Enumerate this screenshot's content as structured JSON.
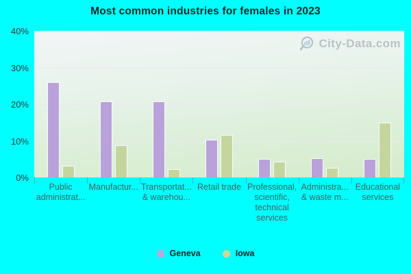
{
  "title": "Most common industries for females in 2023",
  "watermark": {
    "text": "City-Data.com",
    "icon": "magnifier-barchart-icon"
  },
  "y_axis": {
    "ticks": [
      "40%",
      "30%",
      "20%",
      "10%",
      "0%"
    ]
  },
  "chart_data": {
    "type": "bar",
    "title": "Most common industries for females in 2023",
    "categories": [
      "Public administrat...",
      "Manufactur...",
      "Transportat... & warehou...",
      "Retail trade",
      "Professional, scientific, technical services",
      "Administra... & waste m...",
      "Educational services"
    ],
    "category_lines": [
      [
        "Public",
        "administrat..."
      ],
      [
        "Manufactur..."
      ],
      [
        "Transportat...",
        "& warehou..."
      ],
      [
        "Retail trade"
      ],
      [
        "Professional,",
        "scientific,",
        "technical",
        "services"
      ],
      [
        "Administra...",
        "& waste m..."
      ],
      [
        "Educational",
        "services"
      ]
    ],
    "series": [
      {
        "name": "Geneva",
        "color": "#b8a2d9",
        "values": [
          26.0,
          20.7,
          20.7,
          10.3,
          5.0,
          5.2,
          5.1
        ]
      },
      {
        "name": "Iowa",
        "color": "#c4d69e",
        "values": [
          3.2,
          8.8,
          2.2,
          11.6,
          4.3,
          2.6,
          14.9
        ]
      }
    ],
    "ylim": [
      0,
      40
    ],
    "xlabel": "",
    "ylabel": "",
    "grid": "horizontal",
    "gridline_values": [
      10,
      20,
      30
    ],
    "legend_position": "bottom"
  },
  "legend": {
    "items": [
      {
        "label": "Geneva",
        "color": "#bfa8dd"
      },
      {
        "label": "Iowa",
        "color": "#cbd795"
      }
    ]
  },
  "colors": {
    "page_background": "#00ffff",
    "geneva_bar": "#b8a2d9",
    "iowa_bar": "#c4d69e",
    "bar_border": "#fbfaff",
    "plot_gradient_top": "#f2f5f7",
    "plot_gradient_bottom": "#d5eccb",
    "gridline": "#eee5f2",
    "axis_tick": "#2bb8ca",
    "title_text": "#1d2727",
    "y_label_text": "#323d3d",
    "x_label_text": "#4c5f5f",
    "legend_text": "#1c2626",
    "watermark_text": "#b2b8bd"
  }
}
